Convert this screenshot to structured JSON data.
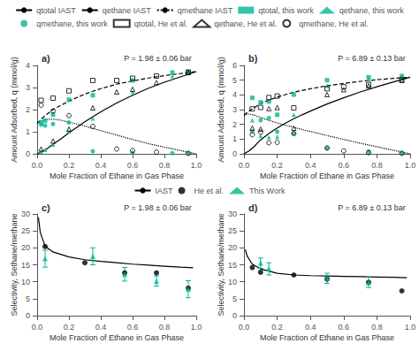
{
  "chart_data": [
    {
      "type": "scatter",
      "title": "a)",
      "annotation": "P = 1.98 ± 0.06 bar",
      "xlabel": "Mole Fraction of Ethane in Gas Phase",
      "ylabel": "Amount Adsorbed, q (mmol/g)",
      "xlim": [
        0.0,
        1.0
      ],
      "xticks": [
        {
          "value": 0.0,
          "label": "0.0"
        },
        0.2,
        0.4,
        0.6,
        0.8,
        {
          "value": 1.0,
          "label": "1.0"
        }
      ],
      "ylim": [
        0,
        4
      ],
      "yticks": [
        0,
        1,
        2,
        3,
        4
      ],
      "grid": false,
      "series": [
        {
          "name": "qtotal IAST",
          "type": "line",
          "line_style": "dashed",
          "color": "#000000",
          "x": [
            0.0,
            0.03,
            0.06,
            0.1,
            0.15,
            0.2,
            0.25,
            0.3,
            0.35,
            0.4,
            0.5,
            0.6,
            0.7,
            0.8,
            0.9,
            1.0
          ],
          "values": [
            1.38,
            1.6,
            1.78,
            2.0,
            2.2,
            2.38,
            2.55,
            2.7,
            2.83,
            2.95,
            3.15,
            3.3,
            3.43,
            3.54,
            3.63,
            3.72
          ]
        },
        {
          "name": "qethane IAST",
          "type": "line",
          "line_style": "solid",
          "color": "#000000",
          "x": [
            0.0,
            0.03,
            0.06,
            0.1,
            0.15,
            0.2,
            0.25,
            0.3,
            0.35,
            0.4,
            0.5,
            0.6,
            0.7,
            0.8,
            0.9,
            1.0
          ],
          "values": [
            0.0,
            0.1,
            0.22,
            0.43,
            0.68,
            0.95,
            1.2,
            1.45,
            1.68,
            1.9,
            2.3,
            2.65,
            2.97,
            3.24,
            3.48,
            3.72
          ]
        },
        {
          "name": "qmethane IAST",
          "type": "line",
          "line_style": "dotted",
          "color": "#000000",
          "x": [
            0.0,
            0.03,
            0.06,
            0.1,
            0.15,
            0.2,
            0.25,
            0.3,
            0.35,
            0.4,
            0.5,
            0.6,
            0.7,
            0.8,
            0.9,
            1.0
          ],
          "values": [
            1.38,
            1.5,
            1.56,
            1.57,
            1.52,
            1.43,
            1.35,
            1.25,
            1.15,
            1.05,
            0.85,
            0.65,
            0.46,
            0.3,
            0.15,
            0.0
          ]
        },
        {
          "name": "qtotal, this work",
          "marker": "square",
          "color": "#00b894",
          "x": [
            0.025,
            0.05,
            0.1,
            0.2,
            0.35,
            0.6,
            0.85,
            0.95
          ],
          "values": [
            1.42,
            1.5,
            1.78,
            2.45,
            2.65,
            3.32,
            3.68,
            3.7
          ]
        },
        {
          "name": "qethane, this work",
          "marker": "triangle",
          "color": "#00b894",
          "x": [
            0.025,
            0.05,
            0.1,
            0.2,
            0.35,
            0.6,
            0.85,
            0.95
          ],
          "values": [
            0.1,
            0.18,
            0.42,
            1.02,
            1.6,
            2.8,
            3.52,
            3.65
          ]
        },
        {
          "name": "qmethane, this work",
          "marker": "circle",
          "color": "#00b894",
          "x": [
            0.025,
            0.05,
            0.1,
            0.2,
            0.35,
            0.6,
            0.85,
            0.95
          ],
          "values": [
            1.32,
            1.28,
            1.35,
            1.42,
            0.12,
            0.05,
            0.03,
            0.02
          ]
        },
        {
          "name": "qtotal, He et al.",
          "marker": "square-open",
          "color": "#000000",
          "x": [
            0.025,
            0.1,
            0.2,
            0.35,
            0.5,
            0.6,
            0.75,
            0.95
          ],
          "values": [
            2.42,
            2.52,
            2.85,
            3.32,
            3.32,
            3.42,
            3.52,
            3.7
          ]
        },
        {
          "name": "qethane, He et al.",
          "marker": "triangle-open",
          "color": "#000000",
          "x": [
            0.025,
            0.1,
            0.2,
            0.35,
            0.5,
            0.6,
            0.75,
            0.95
          ],
          "values": [
            0.22,
            0.58,
            1.12,
            2.08,
            2.8,
            2.92,
            3.22,
            3.68
          ]
        },
        {
          "name": "qmethane, He et al.",
          "marker": "circle-open",
          "color": "#000000",
          "x": [
            0.025,
            0.1,
            0.2,
            0.35,
            0.5,
            0.6,
            0.75,
            0.95
          ],
          "values": [
            2.2,
            1.94,
            1.73,
            1.24,
            0.22,
            0.15,
            0.08,
            0.02
          ]
        }
      ]
    },
    {
      "type": "scatter",
      "title": "b)",
      "annotation": "P = 6.89 ± 0.13 bar",
      "xlabel": "Mole Fraction of Ethane in Gas Phase",
      "ylabel": "Amount Adsorbed, q (mmol/g)",
      "xlim": [
        0.0,
        1.0
      ],
      "xticks": [
        {
          "value": 0.0,
          "label": "0.0"
        },
        0.2,
        0.4,
        0.6,
        0.8,
        {
          "value": 1.0,
          "label": "1.0"
        }
      ],
      "ylim": [
        0,
        6
      ],
      "yticks": [
        0,
        1,
        2,
        3,
        4,
        5,
        6
      ],
      "grid": false,
      "series": [
        {
          "name": "qtotal IAST",
          "type": "line",
          "line_style": "dashed",
          "color": "#000000",
          "x": [
            0.0,
            0.03,
            0.06,
            0.1,
            0.15,
            0.2,
            0.25,
            0.3,
            0.35,
            0.4,
            0.5,
            0.6,
            0.7,
            0.8,
            0.9,
            1.0
          ],
          "values": [
            2.62,
            2.9,
            3.12,
            3.42,
            3.65,
            3.85,
            4.02,
            4.18,
            4.3,
            4.42,
            4.62,
            4.78,
            4.92,
            5.03,
            5.12,
            5.2
          ]
        },
        {
          "name": "qethane IAST",
          "type": "line",
          "line_style": "solid",
          "color": "#000000",
          "x": [
            0.0,
            0.03,
            0.06,
            0.1,
            0.15,
            0.2,
            0.25,
            0.3,
            0.35,
            0.4,
            0.5,
            0.6,
            0.7,
            0.8,
            0.9,
            1.0
          ],
          "values": [
            0.0,
            0.2,
            0.48,
            0.95,
            1.38,
            1.75,
            2.08,
            2.38,
            2.65,
            2.9,
            3.38,
            3.8,
            4.2,
            4.55,
            4.88,
            5.2
          ]
        },
        {
          "name": "qmethane IAST",
          "type": "line",
          "line_style": "dotted",
          "color": "#000000",
          "x": [
            0.0,
            0.03,
            0.06,
            0.1,
            0.15,
            0.2,
            0.25,
            0.3,
            0.35,
            0.4,
            0.5,
            0.6,
            0.7,
            0.8,
            0.9,
            1.0
          ],
          "values": [
            2.62,
            2.7,
            2.64,
            2.47,
            2.27,
            2.1,
            1.94,
            1.8,
            1.65,
            1.52,
            1.24,
            0.98,
            0.72,
            0.48,
            0.24,
            0.0
          ]
        },
        {
          "name": "qtotal, this work",
          "marker": "square",
          "color": "#00b894",
          "x": [
            0.05,
            0.1,
            0.15,
            0.2,
            0.3,
            0.5,
            0.75,
            0.95
          ],
          "values": [
            3.8,
            3.5,
            3.55,
            2.65,
            4.02,
            5.0,
            5.2,
            5.28
          ]
        },
        {
          "name": "qethane, this work",
          "marker": "triangle",
          "color": "#00b894",
          "x": [
            0.05,
            0.1,
            0.15,
            0.2,
            0.3,
            0.5,
            0.75,
            0.95
          ],
          "values": [
            2.28,
            1.22,
            1.12,
            1.15,
            2.65,
            4.62,
            5.05,
            5.25
          ]
        },
        {
          "name": "qmethane, this work",
          "marker": "circle",
          "color": "#00b894",
          "x": [
            0.05,
            0.1,
            0.15,
            0.2,
            0.3,
            0.5,
            0.75,
            0.95
          ],
          "values": [
            1.52,
            2.28,
            2.43,
            1.5,
            1.37,
            0.38,
            0.15,
            0.03
          ]
        },
        {
          "name": "qtotal, He et al.",
          "marker": "square-open",
          "color": "#000000",
          "x": [
            0.05,
            0.1,
            0.15,
            0.2,
            0.3,
            0.5,
            0.6,
            0.75,
            0.95
          ],
          "values": [
            3.05,
            3.15,
            3.82,
            3.92,
            3.12,
            4.42,
            4.55,
            4.7,
            5.02
          ]
        },
        {
          "name": "qethane, He et al.",
          "marker": "triangle-open",
          "color": "#000000",
          "x": [
            0.05,
            0.1,
            0.15,
            0.2,
            0.3,
            0.5,
            0.6,
            0.75,
            0.95
          ],
          "values": [
            1.75,
            1.68,
            3.07,
            3.14,
            1.74,
            4.02,
            4.35,
            4.62,
            4.98
          ]
        },
        {
          "name": "qmethane, He et al.",
          "marker": "circle-open",
          "color": "#000000",
          "x": [
            0.05,
            0.1,
            0.15,
            0.2,
            0.3,
            0.5,
            0.6,
            0.75,
            0.95
          ],
          "values": [
            1.3,
            1.47,
            0.75,
            0.78,
            1.38,
            0.4,
            0.2,
            0.08,
            0.04
          ]
        }
      ]
    },
    {
      "type": "scatter",
      "title": "c)",
      "annotation": "P = 1.98 ± 0.06 bar",
      "xlabel": "Mole Fraction of Ethane in Gas Phase",
      "ylabel": "Selectivity, Sethane/methane",
      "xlim": [
        0.0,
        1.0
      ],
      "xticks": [
        {
          "value": 0.0,
          "label": "0.0"
        },
        0.2,
        0.4,
        0.6,
        0.8,
        {
          "value": 1.0,
          "label": "1.0"
        }
      ],
      "ylim": [
        0,
        30
      ],
      "yticks": [
        0,
        5,
        10,
        15,
        20,
        25,
        30
      ],
      "grid": false,
      "series": [
        {
          "name": "IAST",
          "type": "line",
          "line_style": "solid",
          "color": "#000000",
          "x": [
            0.008,
            0.02,
            0.05,
            0.1,
            0.2,
            0.3,
            0.4,
            0.5,
            0.6,
            0.7,
            0.8,
            0.9,
            0.98
          ],
          "values": [
            29.0,
            24.5,
            20.5,
            18.8,
            17.3,
            16.5,
            16.0,
            15.6,
            15.2,
            14.9,
            14.6,
            14.3,
            14.1
          ]
        },
        {
          "name": "He et al.",
          "marker": "circle",
          "color": "#000000",
          "x": [
            0.05,
            0.3,
            0.55,
            0.75,
            0.95
          ],
          "values": [
            20.4,
            15.6,
            12.6,
            12.6,
            8.1
          ]
        },
        {
          "name": "This Work",
          "marker": "triangle",
          "color": "#00b894",
          "x": [
            0.05,
            0.35,
            0.55,
            0.75,
            0.95
          ],
          "values": [
            16.8,
            17.5,
            12.2,
            10.2,
            7.8
          ],
          "yerr": [
            2.5,
            2.5,
            2.0,
            1.5,
            2.5
          ]
        }
      ]
    },
    {
      "type": "scatter",
      "title": "d)",
      "annotation": "P = 6.89 ± 0.13 bar",
      "xlabel": "Mole Fraction of Ethane in Gas Phase",
      "ylabel": "Selectivity, Sethane/methane",
      "xlim": [
        0.0,
        1.0
      ],
      "xticks": [
        {
          "value": 0.0,
          "label": "0.0"
        },
        0.2,
        0.4,
        0.6,
        0.8,
        {
          "value": 1.0,
          "label": "1.0"
        }
      ],
      "ylim": [
        0,
        30
      ],
      "yticks": [
        0,
        5,
        10,
        15,
        20,
        25,
        30
      ],
      "grid": false,
      "series": [
        {
          "name": "IAST",
          "type": "line",
          "line_style": "solid",
          "color": "#000000",
          "x": [
            0.008,
            0.02,
            0.05,
            0.1,
            0.2,
            0.3,
            0.4,
            0.5,
            0.6,
            0.7,
            0.8,
            0.9,
            0.98
          ],
          "values": [
            19.5,
            17.5,
            15.2,
            13.8,
            12.5,
            12.0,
            11.8,
            11.7,
            11.6,
            11.5,
            11.4,
            11.3,
            11.2
          ]
        },
        {
          "name": "He et al.",
          "marker": "circle",
          "color": "#000000",
          "x": [
            0.05,
            0.1,
            0.3,
            0.5,
            0.75,
            0.95
          ],
          "values": [
            14.2,
            12.8,
            12.0,
            10.8,
            9.8,
            7.3
          ]
        },
        {
          "name": "This Work",
          "marker": "triangle",
          "color": "#00b894",
          "x": [
            0.1,
            0.15,
            0.5,
            0.75
          ],
          "values": [
            15.5,
            13.8,
            11.0,
            9.8
          ],
          "yerr": [
            1.5,
            1.8,
            1.5,
            1.5
          ]
        }
      ]
    }
  ]
}
